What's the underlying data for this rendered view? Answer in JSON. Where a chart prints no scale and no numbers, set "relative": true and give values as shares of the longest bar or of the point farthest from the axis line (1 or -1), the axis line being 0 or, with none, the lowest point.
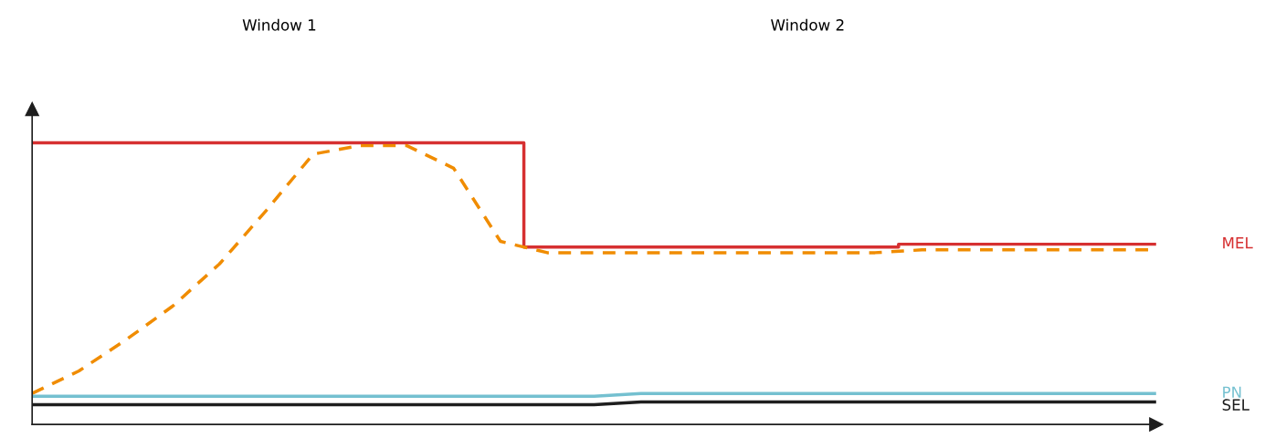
{
  "chart_data": {
    "type": "line",
    "relative": true,
    "legend": false,
    "annotations": [
      "Window 1",
      "Window 2"
    ],
    "categories": [
      null,
      null,
      null,
      null,
      null,
      null,
      null,
      null,
      null,
      null,
      null,
      null,
      null,
      null,
      null,
      null,
      null,
      null,
      null,
      null,
      null,
      null,
      null,
      null,
      null
    ],
    "series": [
      {
        "name": "MEL",
        "type": "step",
        "color": "#d63031",
        "line_style": "solid",
        "values": [
          1,
          1,
          1,
          1,
          1,
          1,
          1,
          1,
          1,
          1,
          1,
          0.63,
          0.63,
          0.63,
          0.63,
          0.63,
          0.63,
          0.63,
          0.63,
          0.64,
          0.64,
          0.64,
          0.64,
          0.64,
          0.64
        ]
      },
      {
        "type": "line",
        "color": "#f08c00",
        "line_style": "dashed",
        "values": [
          0.11,
          0.19,
          0.3,
          0.42,
          0.57,
          0.76,
          0.96,
          0.99,
          0.99,
          0.91,
          0.65,
          0.61,
          0.61,
          0.61,
          0.61,
          0.61,
          0.61,
          0.61,
          0.61,
          0.62,
          0.62,
          0.62,
          0.62,
          0.62,
          0.62
        ]
      },
      {
        "name": "PN",
        "type": "line",
        "color": "#74c0d0",
        "line_style": "solid",
        "values": [
          0.1,
          0.1,
          0.1,
          0.1,
          0.1,
          0.1,
          0.1,
          0.1,
          0.1,
          0.1,
          0.1,
          0.1,
          0.1,
          0.11,
          0.11,
          0.11,
          0.11,
          0.11,
          0.11,
          0.11,
          0.11,
          0.11,
          0.11,
          0.11,
          0.11
        ]
      },
      {
        "name": "SEL",
        "type": "line",
        "color": "#1e1e1e",
        "line_style": "solid",
        "values": [
          0.07,
          0.07,
          0.07,
          0.07,
          0.07,
          0.07,
          0.07,
          0.07,
          0.07,
          0.07,
          0.07,
          0.07,
          0.07,
          0.08,
          0.08,
          0.08,
          0.08,
          0.08,
          0.08,
          0.08,
          0.08,
          0.08,
          0.08,
          0.08,
          0.08
        ]
      }
    ]
  }
}
